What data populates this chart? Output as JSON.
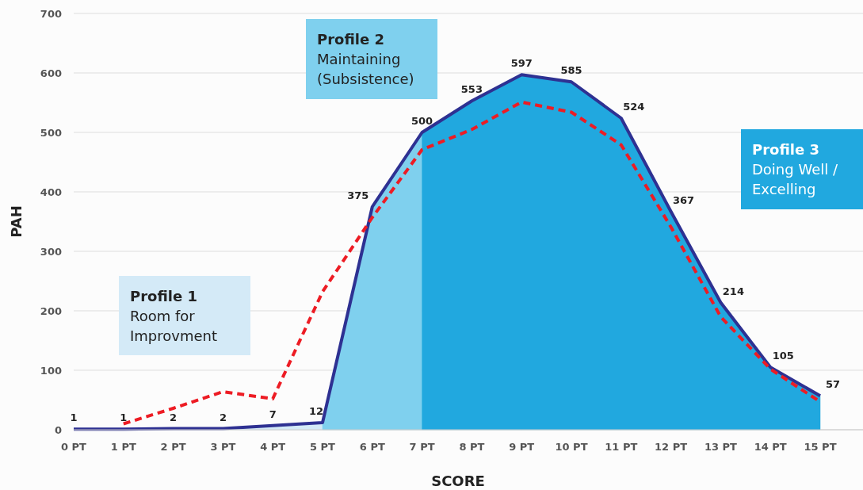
{
  "chart_data": {
    "type": "line",
    "xlabel": "SCORE",
    "ylabel": "PAH",
    "categories": [
      "0 PT",
      "1 PT",
      "2 PT",
      "3 PT",
      "4 PT",
      "5 PT",
      "6 PT",
      "7 PT",
      "8 PT",
      "9 PT",
      "10 PT",
      "11 PT",
      "12 PT",
      "13 PT",
      "14 PT",
      "15 PT"
    ],
    "series": [
      {
        "type": "area",
        "color": "#d4eaf7",
        "values": [
          1,
          1,
          2,
          2,
          7,
          12,
          null,
          null,
          null,
          null,
          null,
          null,
          null,
          null,
          null,
          null
        ]
      },
      {
        "type": "area",
        "color": "#7fd0ee",
        "values": [
          null,
          null,
          null,
          null,
          null,
          12,
          375,
          500,
          null,
          null,
          null,
          null,
          null,
          null,
          null,
          null
        ]
      },
      {
        "type": "area",
        "color": "#21a8df",
        "values": [
          null,
          null,
          null,
          null,
          null,
          null,
          null,
          500,
          553,
          597,
          585,
          524,
          367,
          214,
          105,
          57
        ]
      },
      {
        "color": "#2e3192",
        "line_style": "solid",
        "values": [
          1,
          1,
          2,
          2,
          7,
          12,
          375,
          500,
          553,
          597,
          585,
          524,
          367,
          214,
          105,
          57
        ],
        "value_labels": [
          "1",
          "1",
          "2",
          "2",
          "7",
          "12",
          "375",
          "500",
          "553",
          "597",
          "585",
          "524",
          "367",
          "214",
          "105",
          "57"
        ]
      },
      {
        "color": "#ed1c24",
        "line_style": "dashed",
        "values": [
          null,
          10,
          36,
          64,
          52,
          232,
          357,
          471,
          505,
          551,
          534,
          479,
          341,
          190,
          102,
          47
        ]
      }
    ],
    "ylim": [
      0,
      700
    ],
    "yticks": [
      0,
      100,
      200,
      300,
      400,
      500,
      600,
      700
    ],
    "grid": "y",
    "annotations": [
      "Profile 1\nRoom for\nImprovment",
      "Profile 2\nMaintaining\n(Subsistence)",
      "Profile 3\nDoing Well /\nExcelling"
    ]
  }
}
